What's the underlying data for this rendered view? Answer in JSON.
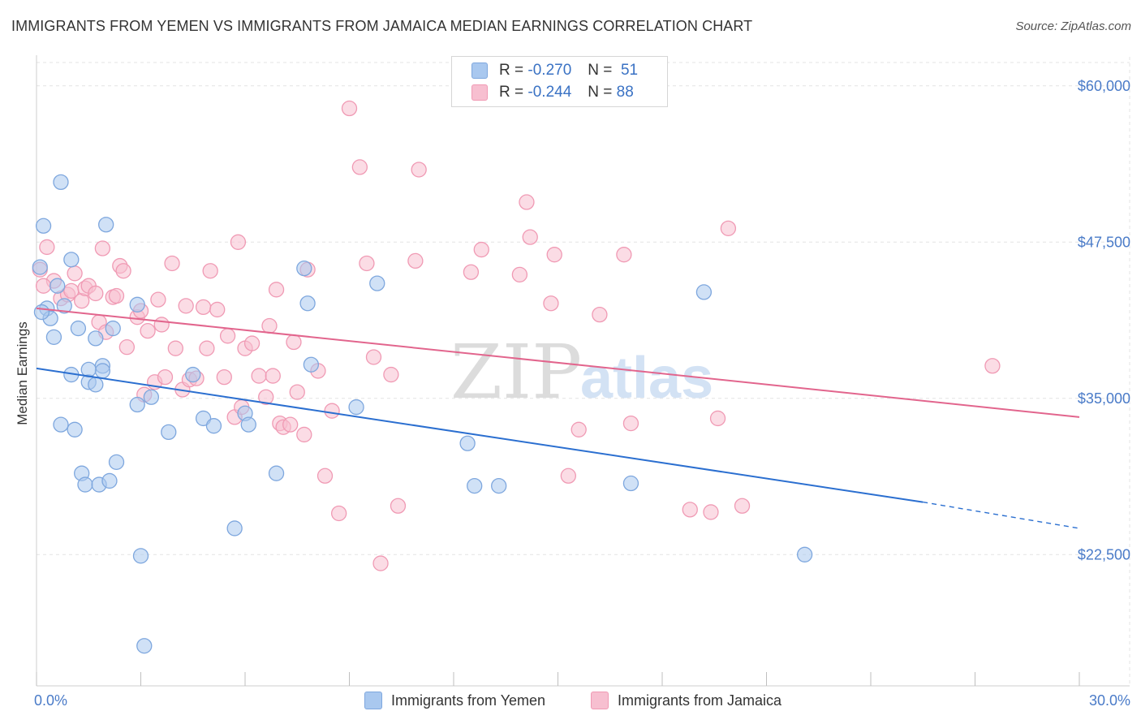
{
  "title": "IMMIGRANTS FROM YEMEN VS IMMIGRANTS FROM JAMAICA MEDIAN EARNINGS CORRELATION CHART",
  "source": "Source: ZipAtlas.com",
  "watermark": {
    "zip": "ZIP",
    "atlas": "atlas"
  },
  "legend": {
    "yemen": {
      "r_label": "R =",
      "r_value": "-0.270",
      "n_label": "N =",
      "n_value": "51"
    },
    "jamaica": {
      "r_label": "R =",
      "r_value": "-0.244",
      "n_label": "N =",
      "n_value": "88"
    }
  },
  "colors": {
    "yemen_fill": "#a9c8ef",
    "yemen_stroke": "#7ea7de",
    "yemen_line": "#2b6fd0",
    "jamaica_fill": "#f7bfd0",
    "jamaica_stroke": "#f09ab4",
    "jamaica_line": "#e2658d",
    "grid": "#e3e3e3",
    "axis_label": "#4a7bc8"
  },
  "chart_data": {
    "type": "scatter",
    "title": "IMMIGRANTS FROM YEMEN VS IMMIGRANTS FROM JAMAICA MEDIAN EARNINGS CORRELATION CHART",
    "xlabel": "",
    "ylabel": "Median Earnings",
    "xlim": [
      0,
      30
    ],
    "ylim": [
      12000,
      62000
    ],
    "x_tick_labels": [
      "0.0%",
      "30.0%"
    ],
    "y_ticks": [
      22500,
      35000,
      47500,
      60000
    ],
    "y_tick_labels": [
      "$22,500",
      "$35,000",
      "$47,500",
      "$60,000"
    ],
    "grid": true,
    "legend_position": "top-center",
    "series": [
      {
        "name": "Immigrants from Yemen",
        "r": -0.27,
        "n": 51,
        "trend": {
          "x0": 0,
          "y0": 37400,
          "x1": 25.5,
          "y1": 26700,
          "dashed_to_x": 30,
          "dashed_to_y": 24600
        },
        "points": [
          [
            0.1,
            45500
          ],
          [
            0.2,
            48800
          ],
          [
            0.3,
            42200
          ],
          [
            0.4,
            41400
          ],
          [
            0.5,
            39900
          ],
          [
            0.6,
            44000
          ],
          [
            0.7,
            52300
          ],
          [
            0.7,
            32900
          ],
          [
            1.0,
            46100
          ],
          [
            1.0,
            36900
          ],
          [
            1.1,
            32500
          ],
          [
            1.2,
            40600
          ],
          [
            1.3,
            29000
          ],
          [
            1.4,
            28100
          ],
          [
            1.5,
            36300
          ],
          [
            1.7,
            39800
          ],
          [
            1.7,
            36100
          ],
          [
            1.8,
            28100
          ],
          [
            1.9,
            37600
          ],
          [
            1.9,
            37200
          ],
          [
            2.0,
            48900
          ],
          [
            2.1,
            28400
          ],
          [
            2.2,
            40600
          ],
          [
            2.3,
            29900
          ],
          [
            2.9,
            42500
          ],
          [
            2.9,
            34500
          ],
          [
            3.0,
            22400
          ],
          [
            3.1,
            15200
          ],
          [
            3.3,
            35100
          ],
          [
            3.8,
            32300
          ],
          [
            4.5,
            36900
          ],
          [
            4.8,
            33400
          ],
          [
            5.1,
            32800
          ],
          [
            5.7,
            24600
          ],
          [
            6.0,
            33800
          ],
          [
            6.1,
            32900
          ],
          [
            6.9,
            29000
          ],
          [
            7.7,
            45400
          ],
          [
            7.8,
            42600
          ],
          [
            7.9,
            37700
          ],
          [
            9.2,
            34300
          ],
          [
            9.8,
            44200
          ],
          [
            12.4,
            31400
          ],
          [
            12.6,
            28000
          ],
          [
            13.3,
            28000
          ],
          [
            17.1,
            28200
          ],
          [
            19.2,
            43500
          ],
          [
            22.1,
            22500
          ],
          [
            0.15,
            41900
          ],
          [
            0.8,
            42400
          ],
          [
            1.5,
            37300
          ]
        ]
      },
      {
        "name": "Immigrants from Jamaica",
        "r": -0.244,
        "n": 88,
        "trend": {
          "x0": 0,
          "y0": 42200,
          "x1": 30,
          "y1": 33500
        },
        "points": [
          [
            0.1,
            45300
          ],
          [
            0.3,
            47100
          ],
          [
            0.5,
            44400
          ],
          [
            0.7,
            43000
          ],
          [
            0.9,
            43300
          ],
          [
            1.0,
            43600
          ],
          [
            1.1,
            45000
          ],
          [
            1.3,
            42800
          ],
          [
            1.4,
            43800
          ],
          [
            1.5,
            44000
          ],
          [
            1.7,
            43400
          ],
          [
            1.8,
            41100
          ],
          [
            1.9,
            47000
          ],
          [
            2.0,
            40300
          ],
          [
            2.2,
            43100
          ],
          [
            2.3,
            43200
          ],
          [
            2.4,
            45600
          ],
          [
            2.5,
            45200
          ],
          [
            2.6,
            39100
          ],
          [
            2.9,
            41500
          ],
          [
            3.0,
            42000
          ],
          [
            3.1,
            35300
          ],
          [
            3.2,
            40400
          ],
          [
            3.4,
            36300
          ],
          [
            3.5,
            42900
          ],
          [
            3.6,
            40900
          ],
          [
            3.7,
            36700
          ],
          [
            3.9,
            45800
          ],
          [
            4.0,
            39000
          ],
          [
            4.2,
            35700
          ],
          [
            4.3,
            42400
          ],
          [
            4.4,
            36500
          ],
          [
            4.6,
            36600
          ],
          [
            4.8,
            42300
          ],
          [
            4.9,
            39000
          ],
          [
            5.0,
            45200
          ],
          [
            5.2,
            42100
          ],
          [
            5.4,
            36700
          ],
          [
            5.5,
            40000
          ],
          [
            5.7,
            33500
          ],
          [
            5.8,
            47500
          ],
          [
            5.9,
            34300
          ],
          [
            6.0,
            39000
          ],
          [
            6.2,
            39400
          ],
          [
            6.4,
            36800
          ],
          [
            6.6,
            35100
          ],
          [
            6.7,
            40800
          ],
          [
            6.8,
            36800
          ],
          [
            6.9,
            43700
          ],
          [
            7.0,
            33000
          ],
          [
            7.1,
            32700
          ],
          [
            7.3,
            32900
          ],
          [
            7.4,
            39500
          ],
          [
            7.5,
            35500
          ],
          [
            7.7,
            32100
          ],
          [
            7.8,
            45300
          ],
          [
            8.1,
            37200
          ],
          [
            8.3,
            28800
          ],
          [
            8.5,
            34000
          ],
          [
            8.7,
            25800
          ],
          [
            9.0,
            58200
          ],
          [
            9.3,
            53500
          ],
          [
            9.5,
            45800
          ],
          [
            9.7,
            38300
          ],
          [
            9.9,
            21800
          ],
          [
            10.2,
            36900
          ],
          [
            10.4,
            26400
          ],
          [
            10.9,
            46000
          ],
          [
            11.0,
            53300
          ],
          [
            12.5,
            45100
          ],
          [
            12.8,
            46900
          ],
          [
            13.9,
            44900
          ],
          [
            14.1,
            50700
          ],
          [
            14.2,
            47900
          ],
          [
            14.8,
            42600
          ],
          [
            14.9,
            46500
          ],
          [
            15.3,
            28800
          ],
          [
            15.6,
            32500
          ],
          [
            16.2,
            41700
          ],
          [
            16.9,
            46500
          ],
          [
            17.1,
            33000
          ],
          [
            18.8,
            26100
          ],
          [
            19.4,
            25900
          ],
          [
            19.6,
            33400
          ],
          [
            19.9,
            48600
          ],
          [
            20.3,
            26400
          ],
          [
            27.5,
            37600
          ],
          [
            0.2,
            44000
          ]
        ]
      }
    ]
  },
  "bottom_legend": {
    "yemen_label": "Immigrants from Yemen",
    "jamaica_label": "Immigrants from Jamaica"
  }
}
